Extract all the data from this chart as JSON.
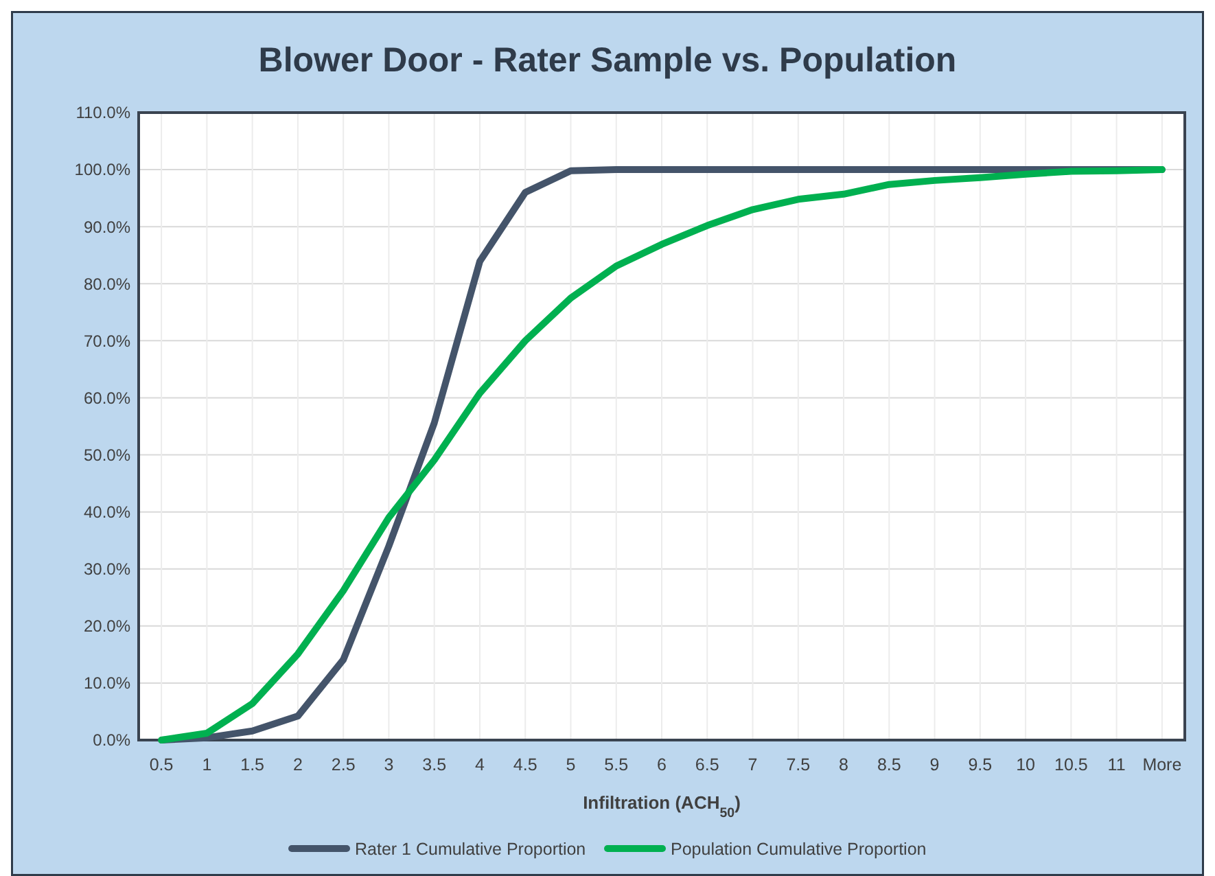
{
  "chart_data": {
    "type": "line",
    "title": "Blower Door - Rater Sample vs. Population",
    "xlabel": "Infiltration (ACH$_{50}$)",
    "categories": [
      "0.5",
      "1",
      "1.5",
      "2",
      "2.5",
      "3",
      "3.5",
      "4",
      "4.5",
      "5",
      "5.5",
      "6",
      "6.5",
      "7",
      "7.5",
      "8",
      "8.5",
      "9",
      "9.5",
      "10",
      "10.5",
      "11",
      "More"
    ],
    "series": [
      {
        "name": "Rater 1 Cumulative Proportion",
        "color": "#44546a",
        "values": [
          0,
          0.4,
          1.6,
          4.2,
          14.1,
          34,
          55.6,
          83.9,
          96,
          99.8,
          100,
          100,
          100,
          100,
          100,
          100,
          100,
          100,
          100,
          100,
          100,
          100,
          100
        ]
      },
      {
        "name": "Population Cumulative Proportion",
        "color": "#00b050",
        "values": [
          0,
          1.2,
          6.4,
          15.1,
          26.2,
          39,
          49.1,
          60.8,
          70,
          77.5,
          83.1,
          86.9,
          90.2,
          93,
          94.8,
          95.7,
          97.4,
          98.1,
          98.6,
          99.2,
          99.7,
          99.8,
          100
        ]
      }
    ],
    "ylim": [
      0,
      110
    ],
    "yticks": [
      {
        "value": 0,
        "label": "0.0%"
      },
      {
        "value": 10,
        "label": "10.0%"
      },
      {
        "value": 20,
        "label": "20.0%"
      },
      {
        "value": 30,
        "label": "30.0%"
      },
      {
        "value": 40,
        "label": "40.0%"
      },
      {
        "value": 50,
        "label": "50.0%"
      },
      {
        "value": 60,
        "label": "60.0%"
      },
      {
        "value": 70,
        "label": "70.0%"
      },
      {
        "value": 80,
        "label": "80.0%"
      },
      {
        "value": 90,
        "label": "90.0%"
      },
      {
        "value": 100,
        "label": "100.0%"
      },
      {
        "value": 110,
        "label": "110.0%"
      }
    ],
    "grid": true,
    "legend": "bottom",
    "marker": "none",
    "line_style": "solid"
  }
}
